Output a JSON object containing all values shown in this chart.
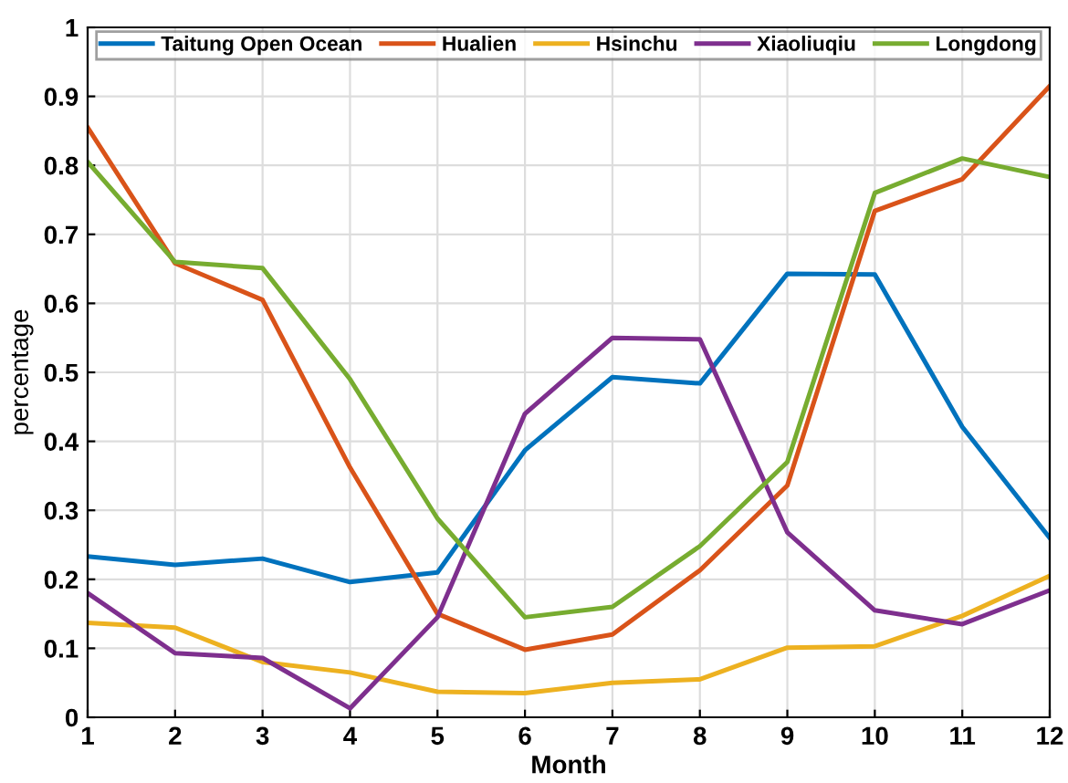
{
  "chart_data": {
    "type": "line",
    "xlabel": "Month",
    "ylabel": "percentage",
    "x": [
      1,
      2,
      3,
      4,
      5,
      6,
      7,
      8,
      9,
      10,
      11,
      12
    ],
    "xlim": [
      1,
      12
    ],
    "xticks": [
      1,
      2,
      3,
      4,
      5,
      6,
      7,
      8,
      9,
      10,
      11,
      12
    ],
    "ylim": [
      0,
      1
    ],
    "yticks": [
      0,
      0.1,
      0.2,
      0.3,
      0.4,
      0.5,
      0.6,
      0.7,
      0.8,
      0.9,
      1
    ],
    "grid": true,
    "legend": "top",
    "marker": "none",
    "line_style": "solid",
    "series": [
      {
        "name": "Taitung Open Ocean",
        "color": "#0072bd",
        "values": [
          0.233,
          0.221,
          0.23,
          0.196,
          0.21,
          0.387,
          0.493,
          0.484,
          0.643,
          0.642,
          0.421,
          0.26
        ]
      },
      {
        "name": "Hualien",
        "color": "#d95319",
        "values": [
          0.855,
          0.658,
          0.605,
          0.362,
          0.15,
          0.098,
          0.12,
          0.213,
          0.336,
          0.734,
          0.78,
          0.915
        ]
      },
      {
        "name": "Hsinchu",
        "color": "#edb120",
        "values": [
          0.137,
          0.13,
          0.08,
          0.065,
          0.037,
          0.035,
          0.05,
          0.055,
          0.101,
          0.103,
          0.147,
          0.205
        ]
      },
      {
        "name": "Xiaoliuqiu",
        "color": "#7e2f8e",
        "values": [
          0.18,
          0.093,
          0.086,
          0.013,
          0.145,
          0.44,
          0.55,
          0.548,
          0.268,
          0.155,
          0.135,
          0.184
        ]
      },
      {
        "name": "Longdong",
        "color": "#77ac30",
        "values": [
          0.805,
          0.66,
          0.651,
          0.49,
          0.288,
          0.145,
          0.16,
          0.248,
          0.37,
          0.76,
          0.81,
          0.783
        ]
      }
    ]
  }
}
